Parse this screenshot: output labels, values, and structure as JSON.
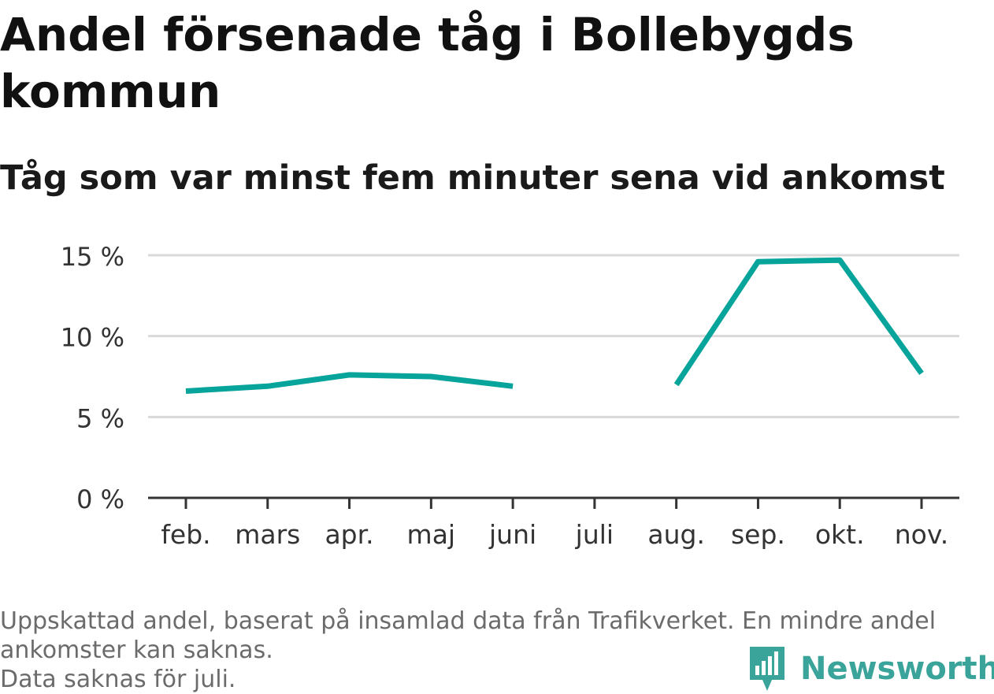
{
  "title": "Andel försenade tåg i Bollebygds kommun",
  "subtitle": "Tåg som var minst fem minuter sena vid ankomst",
  "footer": {
    "note_line1": "Uppskattad andel, baserat på insamlad data från Trafikverket. En mindre andel",
    "note_line2": "ankomster kan saknas.",
    "note_line3": "Data saknas för juli."
  },
  "brand": {
    "name": "Newsworthy",
    "icon": "newsworthy-logo-icon",
    "color": "#3aa49a"
  },
  "colors": {
    "line": "#06a49a",
    "grid": "#d9d9d9",
    "axis": "#333333",
    "tick_text": "#333333"
  },
  "chart_data": {
    "type": "line",
    "categories": [
      "feb.",
      "mars",
      "apr.",
      "maj",
      "juni",
      "juli",
      "aug.",
      "sep.",
      "okt.",
      "nov."
    ],
    "series": [
      {
        "values": [
          6.6,
          6.9,
          7.6,
          7.5,
          6.9,
          null,
          7.0,
          14.6,
          14.7,
          7.7
        ]
      }
    ],
    "ylim": [
      0,
      15
    ],
    "yticks": [
      0,
      5,
      10,
      15
    ],
    "ytick_labels": [
      "0 %",
      "5 %",
      "10 %",
      "15 %"
    ],
    "xlabel": "",
    "ylabel": "",
    "grid": true,
    "legend": "none"
  }
}
